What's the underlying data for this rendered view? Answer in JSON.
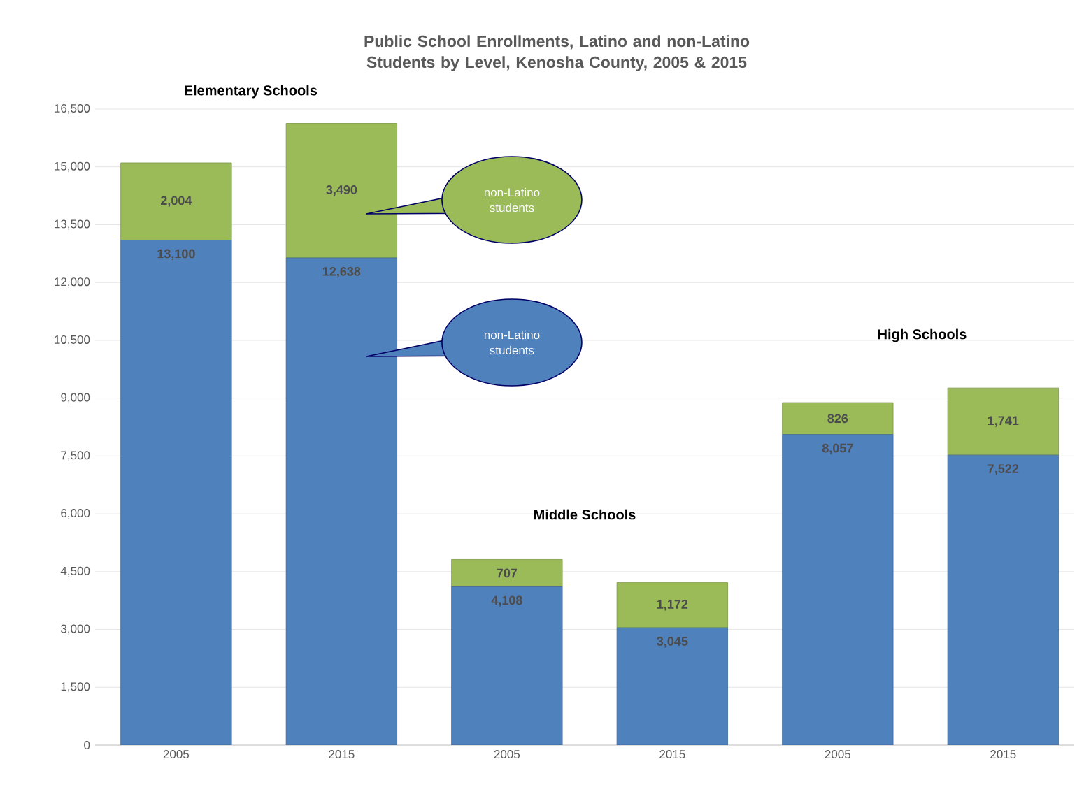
{
  "chart_data": {
    "type": "bar",
    "title": "Public School Enrollments, Latino and non-Latino Students by Level, Kenosha County, 2005 & 2015",
    "categories": [
      "2005",
      "2015",
      "2005",
      "2015",
      "2005",
      "2015"
    ],
    "stacked": true,
    "series": [
      {
        "color": "#4f81bd",
        "values": [
          13100,
          12638,
          4108,
          3045,
          8057,
          7522
        ],
        "value_labels": [
          "13,100",
          "12,638",
          "4,108",
          "3,045",
          "8,057",
          "7,522"
        ]
      },
      {
        "color": "#9bbb59",
        "values": [
          2004,
          3490,
          707,
          1172,
          826,
          1741
        ],
        "value_labels": [
          "2,004",
          "3,490",
          "707",
          "1,172",
          "826",
          "1,741"
        ]
      }
    ],
    "annotations": [
      "Elementary Schools",
      "Middle Schools",
      "High Schools",
      "non-Latino students",
      "non-Latino students"
    ],
    "ylim": [
      0,
      16500
    ],
    "yticks": [
      0,
      {
        "value": 1500,
        "label": "1,500"
      },
      {
        "value": 3000,
        "label": "3,000"
      },
      {
        "value": 4500,
        "label": "4,500"
      },
      {
        "value": 6000,
        "label": "6,000"
      },
      {
        "value": 7500,
        "label": "7,500"
      },
      {
        "value": 9000,
        "label": "9,000"
      },
      {
        "value": 10500,
        "label": "10,500"
      },
      {
        "value": 12000,
        "label": "12,000"
      },
      {
        "value": 13500,
        "label": "13,500"
      },
      {
        "value": 15000,
        "label": "15,000"
      },
      {
        "value": 16500,
        "label": "16,500"
      }
    ],
    "grid": "y"
  }
}
